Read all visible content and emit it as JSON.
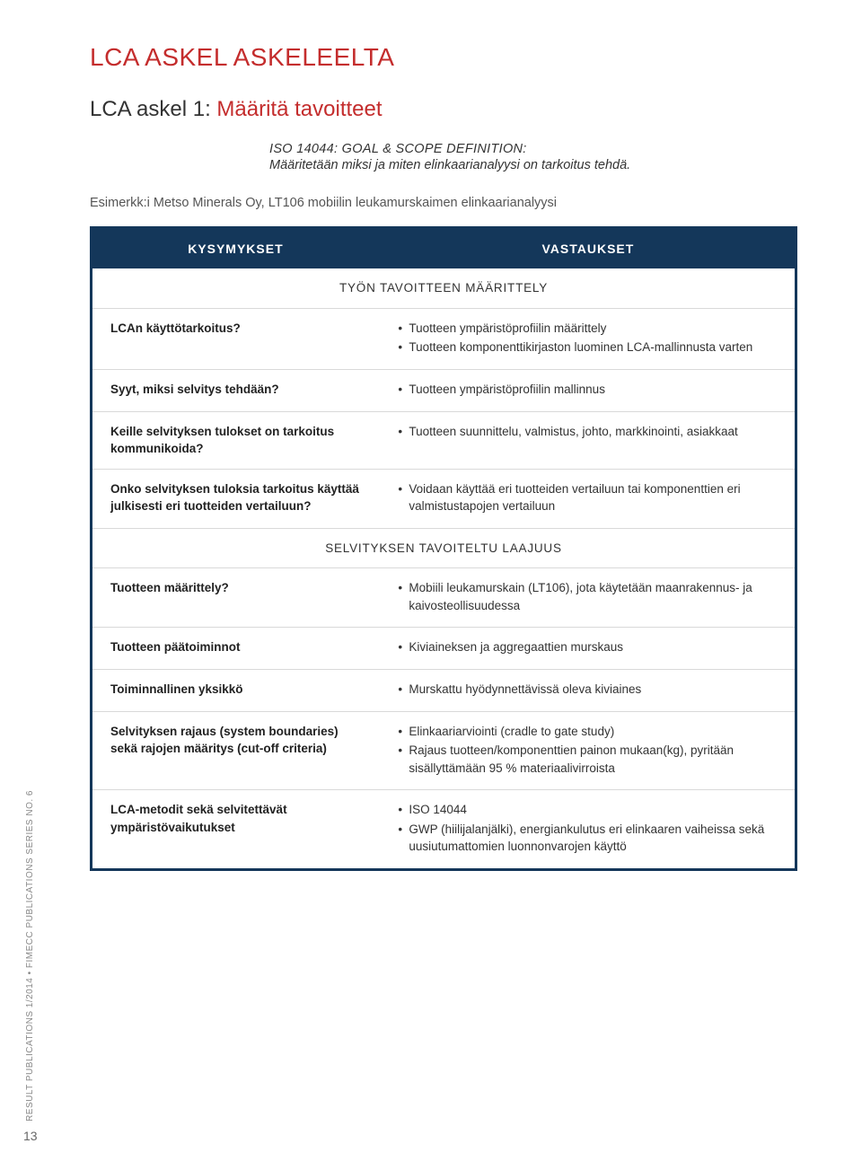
{
  "page": {
    "title": "LCA ASKEL ASKELEELTA",
    "step_label": "LCA askel 1:",
    "step_sub": "Määritä tavoitteet",
    "intro_heading": "ISO 14044: GOAL & SCOPE DEFINITION:",
    "intro_text": "Määritetään miksi ja miten elinkaarianalyysi on tarkoitus tehdä.",
    "example": "Esimerkk:i Metso Minerals Oy, LT106 mobiilin leukamurskaimen elinkaarianalyysi",
    "side_label": "RESULT PUBLICATIONS 1/2014 • FIMECC PUBLICATIONS SERIES NO. 6",
    "page_number": "13",
    "colors": {
      "accent": "#c42d2d",
      "table_border": "#14375a",
      "table_header_bg": "#14375a",
      "row_border": "#d9d9d9",
      "text": "#333333"
    }
  },
  "table": {
    "headers": [
      "KYSYMYKSET",
      "VASTAUKSET"
    ],
    "section1": "TYÖN TAVOITTEEN MÄÄRITTELY",
    "section2": "SELVITYKSEN TAVOITELTU LAAJUUS",
    "rows1": [
      {
        "q": "LCAn käyttötarkoitus?",
        "a": [
          "Tuotteen ympäristöprofiilin määrittely",
          "Tuotteen komponenttikirjaston luominen LCA-mallinnusta varten"
        ]
      },
      {
        "q": "Syyt, miksi selvitys tehdään?",
        "a": [
          "Tuotteen ympäristöprofiilin mallinnus"
        ]
      },
      {
        "q": "Keille selvityksen tulokset on tarkoitus kommunikoida?",
        "a": [
          "Tuotteen suunnittelu, valmistus, johto, markkinointi, asiakkaat"
        ]
      },
      {
        "q": "Onko selvityksen tuloksia tarkoitus käyttää julkisesti eri tuotteiden vertailuun?",
        "a": [
          "Voidaan käyttää eri tuotteiden vertailuun tai komponenttien eri valmistustapojen vertailuun"
        ]
      }
    ],
    "rows2": [
      {
        "q": "Tuotteen määrittely?",
        "a": [
          "Mobiili leukamurskain (LT106), jota käytetään maanrakennus- ja kaivosteollisuudessa"
        ]
      },
      {
        "q": "Tuotteen päätoiminnot",
        "a": [
          "Kiviaineksen ja aggregaattien murskaus"
        ]
      },
      {
        "q": "Toiminnallinen yksikkö",
        "a": [
          "Murskattu hyödynnettävissä oleva kiviaines"
        ]
      },
      {
        "q": "Selvityksen rajaus (system boundaries) sekä rajojen määritys (cut-off criteria)",
        "a": [
          "Elinkaariarviointi (cradle to gate study)",
          "Rajaus tuotteen/komponenttien painon mukaan(kg), pyritään sisällyttämään 95 % materiaalivirroista"
        ]
      },
      {
        "q": "LCA-metodit sekä selvitettävät ympäristövaikutukset",
        "a": [
          "ISO 14044",
          "GWP (hiilijalanjälki), energiankulutus eri elinkaaren vaiheissa sekä uusiutumattomien luonnonvarojen käyttö"
        ]
      }
    ]
  }
}
